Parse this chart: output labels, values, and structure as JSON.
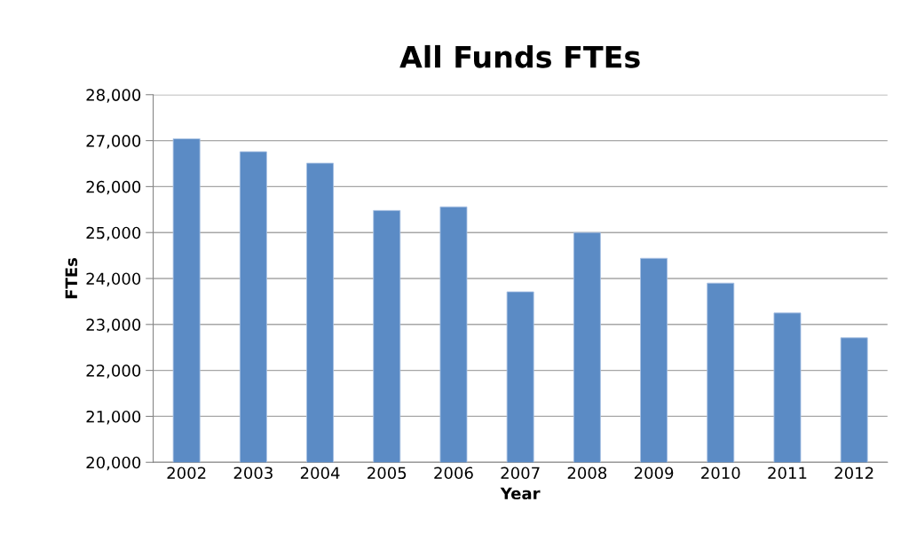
{
  "chart_data": {
    "type": "bar",
    "title": "All Funds FTEs",
    "xlabel": "Year",
    "ylabel": "FTEs",
    "categories": [
      "2002",
      "2003",
      "2004",
      "2005",
      "2006",
      "2007",
      "2008",
      "2009",
      "2010",
      "2011",
      "2012"
    ],
    "values": [
      27040,
      26760,
      26510,
      25480,
      25560,
      23710,
      25000,
      24440,
      23900,
      23250,
      22710
    ],
    "color": "#5b8bc5",
    "ylim": [
      20000,
      28000
    ],
    "yticks": [
      {
        "value": 20000,
        "label": "20,000"
      },
      {
        "value": 21000,
        "label": "21,000"
      },
      {
        "value": 22000,
        "label": "22,000"
      },
      {
        "value": 23000,
        "label": "23,000"
      },
      {
        "value": 24000,
        "label": "24,000"
      },
      {
        "value": 25000,
        "label": "25,000"
      },
      {
        "value": 26000,
        "label": "26,000"
      },
      {
        "value": 27000,
        "label": "27,000"
      },
      {
        "value": 28000,
        "label": "28,000"
      }
    ],
    "grid": "y"
  }
}
